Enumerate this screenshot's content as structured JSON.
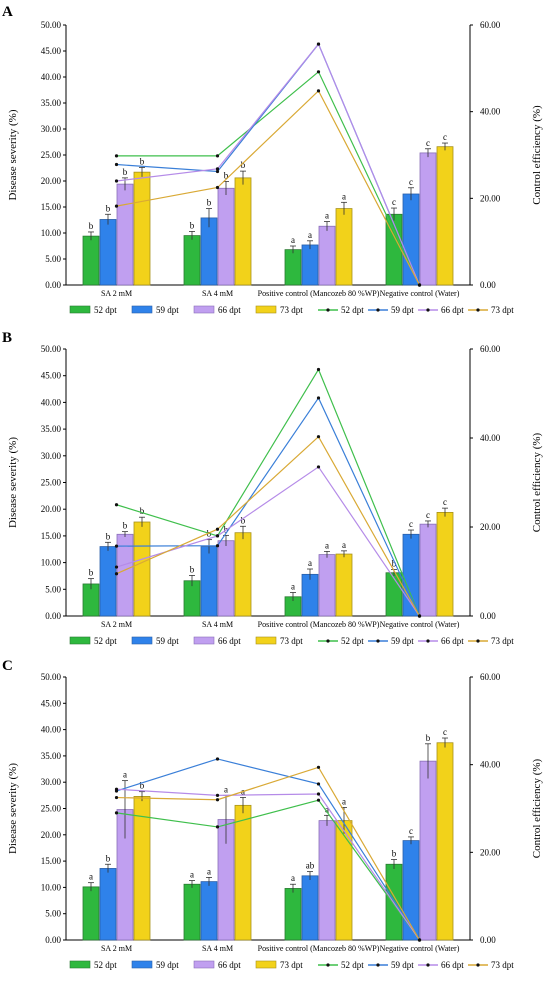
{
  "legend": {
    "bar_labels": [
      "52 dpt",
      "59 dpt",
      "66 dpt",
      "73 dpt"
    ],
    "line_labels": [
      "52 dpt",
      "59 dpt",
      "66 dpt",
      "73 dpt"
    ]
  },
  "colors": {
    "bars": [
      "#2eb83e",
      "#2f82ea",
      "#c09ff0",
      "#f2d21a"
    ],
    "lines": [
      "#3fbf4c",
      "#3a7fd8",
      "#b58be8",
      "#d9a935"
    ],
    "bar_edges": [
      "#2a7a32",
      "#2a5fa8",
      "#8a6fb8",
      "#a8921a"
    ],
    "axis": "#000000"
  },
  "chart_data": [
    {
      "panel": "A",
      "type": "bar",
      "categories": [
        "SA 2 mM",
        "SA 4 mM",
        "Positive control (Mancozeb 80 %WP)",
        "Negative control (Water)"
      ],
      "ylabel": "Disease severity (%)",
      "y2label": "Control efficiency (%)",
      "ylim": [
        0,
        50
      ],
      "y2lim": [
        0,
        60
      ],
      "yticks": [
        "0.00",
        "5.00",
        "10.00",
        "15.00",
        "20.00",
        "25.00",
        "30.00",
        "35.00",
        "40.00",
        "45.00",
        "50.00"
      ],
      "y2ticks": [
        "0.00",
        "20.00",
        "40.00",
        "60.00"
      ],
      "series": [
        {
          "name": "52 dpt",
          "values": [
            9.4,
            9.5,
            6.8,
            13.6
          ],
          "errors": [
            0.8,
            0.8,
            0.7,
            1.2
          ],
          "letters": [
            "b",
            "b",
            "a",
            "c"
          ]
        },
        {
          "name": "59 dpt",
          "values": [
            12.6,
            12.9,
            7.7,
            17.5
          ],
          "errors": [
            1.0,
            1.8,
            0.8,
            1.2
          ],
          "letters": [
            "b",
            "b",
            "a",
            "c"
          ]
        },
        {
          "name": "66 dpt",
          "values": [
            19.4,
            18.6,
            11.3,
            25.4
          ],
          "errors": [
            1.2,
            1.3,
            0.9,
            0.8
          ],
          "letters": [
            "b",
            "b",
            "a",
            "c"
          ]
        },
        {
          "name": "73 dpt",
          "values": [
            21.7,
            20.6,
            14.7,
            26.6
          ],
          "errors": [
            0.9,
            1.3,
            1.2,
            0.7
          ],
          "letters": [
            "b",
            "b",
            "a",
            "c"
          ]
        }
      ],
      "lines": [
        {
          "name": "52 dpt",
          "values": [
            29.8,
            29.8,
            49.2,
            0
          ]
        },
        {
          "name": "59 dpt",
          "values": [
            27.8,
            26.2,
            55.6,
            0
          ]
        },
        {
          "name": "66 dpt",
          "values": [
            24.0,
            26.8,
            55.6,
            0
          ]
        },
        {
          "name": "73 dpt",
          "values": [
            18.2,
            22.5,
            44.8,
            0
          ]
        }
      ]
    },
    {
      "panel": "B",
      "type": "bar",
      "categories": [
        "SA 2 mM",
        "SA 4 mM",
        "Positive control (Mancozeb 80 %WP)",
        "Negative control (Water)"
      ],
      "ylabel": "Disease severity (%)",
      "y2label": "Control efficiency (%)",
      "ylim": [
        0,
        50
      ],
      "y2lim": [
        0,
        60
      ],
      "yticks": [
        "0.00",
        "5.00",
        "10.00",
        "15.00",
        "20.00",
        "25.00",
        "30.00",
        "35.00",
        "40.00",
        "45.00",
        "50.00"
      ],
      "y2ticks": [
        "0.00",
        "20.00",
        "40.00",
        "60.00"
      ],
      "series": [
        {
          "name": "52 dpt",
          "values": [
            6.0,
            6.6,
            3.6,
            8.1
          ],
          "errors": [
            1.0,
            1.0,
            0.8,
            0.6
          ],
          "letters": [
            "b",
            "b",
            "a",
            "b"
          ]
        },
        {
          "name": "59 dpt",
          "values": [
            13.0,
            13.0,
            7.8,
            15.3
          ],
          "errors": [
            0.8,
            1.3,
            1.0,
            0.8
          ],
          "letters": [
            "b",
            "b",
            "a",
            "c"
          ]
        },
        {
          "name": "66 dpt",
          "values": [
            15.3,
            14.1,
            11.5,
            17.2
          ],
          "errors": [
            0.5,
            1.0,
            0.6,
            0.6
          ],
          "letters": [
            "b",
            "b",
            "a",
            "c"
          ]
        },
        {
          "name": "73 dpt",
          "values": [
            17.6,
            15.6,
            11.6,
            19.4
          ],
          "errors": [
            0.9,
            1.2,
            0.6,
            0.8
          ],
          "letters": [
            "b",
            "b",
            "a",
            "c"
          ]
        }
      ],
      "lines": [
        {
          "name": "52 dpt",
          "values": [
            25.0,
            18.0,
            55.4,
            0
          ]
        },
        {
          "name": "59 dpt",
          "values": [
            15.7,
            15.8,
            49.0,
            0
          ]
        },
        {
          "name": "66 dpt",
          "values": [
            11.0,
            18.0,
            33.5,
            0
          ]
        },
        {
          "name": "73 dpt",
          "values": [
            9.5,
            19.5,
            40.3,
            0
          ]
        }
      ]
    },
    {
      "panel": "C",
      "type": "bar",
      "categories": [
        "SA 2 mM",
        "SA 4 mM",
        "Positive control (Mancozeb 80 %WP)",
        "Negative control (Water)"
      ],
      "ylabel": "Disease severity (%)",
      "y2label": "Control efficiency (%)",
      "ylim": [
        0,
        50
      ],
      "y2lim": [
        0,
        60
      ],
      "yticks": [
        "0.00",
        "5.00",
        "10.00",
        "15.00",
        "20.00",
        "25.00",
        "30.00",
        "35.00",
        "40.00",
        "45.00",
        "50.00"
      ],
      "y2ticks": [
        "0.00",
        "20.00",
        "40.00",
        "60.00"
      ],
      "series": [
        {
          "name": "52 dpt",
          "values": [
            10.1,
            10.6,
            9.8,
            14.4
          ],
          "errors": [
            0.8,
            0.7,
            0.8,
            0.9
          ],
          "letters": [
            "a",
            "a",
            "a",
            "b"
          ]
        },
        {
          "name": "59 dpt",
          "values": [
            13.6,
            11.1,
            12.2,
            18.9
          ],
          "errors": [
            0.8,
            0.8,
            0.8,
            0.7
          ],
          "letters": [
            "b",
            "a",
            "ab",
            "c"
          ]
        },
        {
          "name": "66 dpt",
          "values": [
            24.8,
            22.9,
            22.7,
            34.0
          ],
          "errors": [
            5.5,
            4.6,
            1.0,
            3.3
          ],
          "letters": [
            "a",
            "a",
            "a",
            "b"
          ]
        },
        {
          "name": "73 dpt",
          "values": [
            27.3,
            25.6,
            22.7,
            37.5
          ],
          "errors": [
            0.9,
            1.5,
            2.5,
            0.9
          ],
          "letters": [
            "b",
            "a",
            "a",
            "c"
          ]
        }
      ],
      "lines": [
        {
          "name": "52 dpt",
          "values": [
            29.0,
            25.8,
            31.9,
            0
          ]
        },
        {
          "name": "59 dpt",
          "values": [
            34.0,
            41.3,
            35.6,
            0
          ]
        },
        {
          "name": "66 dpt",
          "values": [
            34.4,
            33.0,
            33.3,
            0
          ]
        },
        {
          "name": "73 dpt",
          "values": [
            32.5,
            32.0,
            39.4,
            0
          ]
        }
      ]
    }
  ]
}
